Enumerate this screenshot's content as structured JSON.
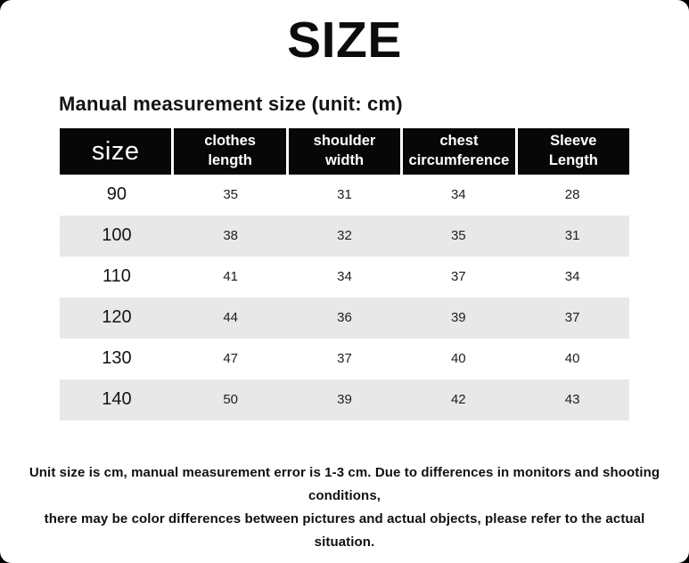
{
  "page": {
    "title": "SIZE",
    "subtitle": "Manual measurement size (unit: cm)",
    "footer_line1": "Unit size is cm, manual measurement error is 1-3 cm. Due to differences in monitors and shooting conditions,",
    "footer_line2": "there may be color differences between pictures and actual objects, please refer to the actual situation."
  },
  "table": {
    "columns": [
      {
        "line1": "size",
        "line2": ""
      },
      {
        "line1": "clothes",
        "line2": "length"
      },
      {
        "line1": "shoulder",
        "line2": "width"
      },
      {
        "line1": "chest",
        "line2": "circumference"
      },
      {
        "line1": "Sleeve",
        "line2": "Length"
      }
    ],
    "rows": [
      {
        "size": "90",
        "values": [
          "35",
          "31",
          "34",
          "28"
        ]
      },
      {
        "size": "100",
        "values": [
          "38",
          "32",
          "35",
          "31"
        ]
      },
      {
        "size": "110",
        "values": [
          "41",
          "34",
          "37",
          "34"
        ]
      },
      {
        "size": "120",
        "values": [
          "44",
          "36",
          "39",
          "37"
        ]
      },
      {
        "size": "130",
        "values": [
          "47",
          "37",
          "40",
          "40"
        ]
      },
      {
        "size": "140",
        "values": [
          "50",
          "39",
          "42",
          "43"
        ]
      }
    ]
  },
  "colors": {
    "header_bg": "#070707",
    "header_text": "#ffffff",
    "row_bg": "#ffffff",
    "row_alt_bg": "#e8e8e8",
    "text": "#111111",
    "corner_bg": "#000000"
  },
  "chart_data": {
    "type": "table",
    "title": "SIZE",
    "subtitle": "Manual measurement size (unit: cm)",
    "unit": "cm",
    "columns": [
      "size",
      "clothes length",
      "shoulder width",
      "chest circumference",
      "Sleeve Length"
    ],
    "rows": [
      [
        90,
        35,
        31,
        34,
        28
      ],
      [
        100,
        38,
        32,
        35,
        31
      ],
      [
        110,
        41,
        34,
        37,
        34
      ],
      [
        120,
        44,
        36,
        39,
        37
      ],
      [
        130,
        47,
        37,
        40,
        40
      ],
      [
        140,
        50,
        39,
        42,
        43
      ]
    ],
    "notes": "Unit size is cm, manual measurement error is 1-3 cm. Due to differences in monitors and shooting conditions, there may be color differences between pictures and actual objects, please refer to the actual situation."
  }
}
